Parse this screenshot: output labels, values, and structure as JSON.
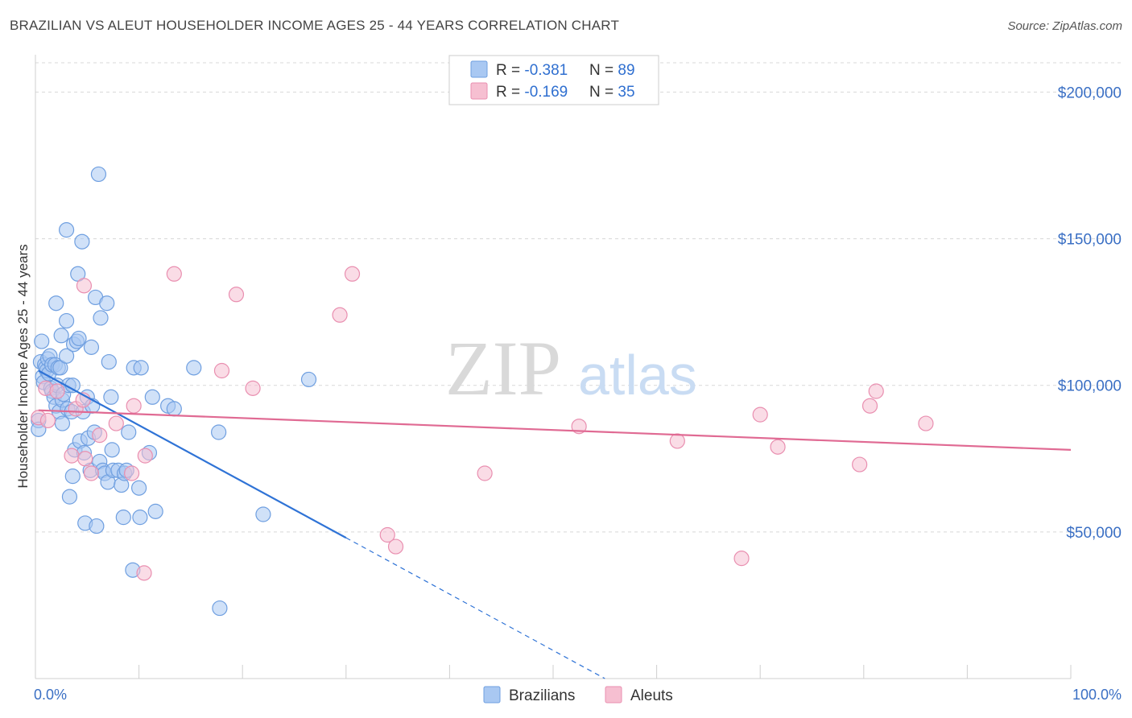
{
  "title": "BRAZILIAN VS ALEUT HOUSEHOLDER INCOME AGES 25 - 44 YEARS CORRELATION CHART",
  "source": "Source: ZipAtlas.com",
  "watermark": {
    "zip": "ZIP",
    "atlas": "atlas"
  },
  "colors": {
    "blue_fill": "#a9c8f2",
    "blue_stroke": "#6f9fe0",
    "blue_line": "#2f73d6",
    "pink_fill": "#f6bfd1",
    "pink_stroke": "#e98fb0",
    "pink_line": "#e06a93",
    "grid": "#d8d8d8",
    "tick_text": "#3a6fc4"
  },
  "legend": {
    "rows": [
      {
        "r_label": "R = ",
        "r_value": "-0.381",
        "n_label": "N = ",
        "n_value": "89"
      },
      {
        "r_label": "R = ",
        "r_value": "-0.169",
        "n_label": "N = ",
        "n_value": "35"
      }
    ]
  },
  "chart_data": {
    "type": "scatter",
    "xlabel": "",
    "ylabel": "Householder Income Ages 25 - 44 years",
    "xlim": [
      0,
      100
    ],
    "ylim": [
      0,
      210000
    ],
    "x_tick_labels": [
      "0.0%",
      "100.0%"
    ],
    "y_ticks": [
      {
        "value": 200000,
        "label": "$200,000"
      },
      {
        "value": 150000,
        "label": "$150,000"
      },
      {
        "value": 100000,
        "label": "$100,000"
      },
      {
        "value": 50000,
        "label": "$50,000"
      }
    ],
    "grid": true,
    "legend_position": "bottom-center",
    "series": [
      {
        "name": "Brazilians",
        "color": "#a9c8f2",
        "trend": {
          "x0": 0.3,
          "y0": 105000,
          "x1": 30,
          "y1": 48000,
          "dash_to_x": 55,
          "dash_to_y": 0
        },
        "points": [
          [
            0.3,
            88000
          ],
          [
            0.3,
            85000
          ],
          [
            0.5,
            108000
          ],
          [
            0.6,
            115000
          ],
          [
            0.7,
            103000
          ],
          [
            0.8,
            101000
          ],
          [
            0.9,
            107000
          ],
          [
            1.0,
            106000
          ],
          [
            1.1,
            105000
          ],
          [
            1.2,
            109000
          ],
          [
            1.3,
            104000
          ],
          [
            1.4,
            110000
          ],
          [
            1.5,
            99000
          ],
          [
            1.6,
            98000
          ],
          [
            1.6,
            107000
          ],
          [
            1.8,
            96000
          ],
          [
            1.9,
            107000
          ],
          [
            2.0,
            128000
          ],
          [
            2.0,
            93000
          ],
          [
            2.1,
            100000
          ],
          [
            2.2,
            106000
          ],
          [
            2.3,
            91000
          ],
          [
            2.4,
            106000
          ],
          [
            2.5,
            117000
          ],
          [
            2.6,
            95000
          ],
          [
            2.6,
            87000
          ],
          [
            2.7,
            97000
          ],
          [
            3.0,
            153000
          ],
          [
            3.0,
            122000
          ],
          [
            3.0,
            110000
          ],
          [
            3.1,
            92000
          ],
          [
            3.2,
            100000
          ],
          [
            3.3,
            62000
          ],
          [
            3.5,
            91000
          ],
          [
            3.6,
            69000
          ],
          [
            3.6,
            100000
          ],
          [
            3.7,
            114000
          ],
          [
            3.8,
            78000
          ],
          [
            4.0,
            115000
          ],
          [
            4.1,
            138000
          ],
          [
            4.2,
            116000
          ],
          [
            4.3,
            81000
          ],
          [
            4.5,
            149000
          ],
          [
            4.6,
            91000
          ],
          [
            4.7,
            77000
          ],
          [
            4.8,
            53000
          ],
          [
            5.0,
            96000
          ],
          [
            5.1,
            82000
          ],
          [
            5.3,
            71000
          ],
          [
            5.4,
            113000
          ],
          [
            5.5,
            93000
          ],
          [
            5.7,
            84000
          ],
          [
            5.8,
            130000
          ],
          [
            5.9,
            52000
          ],
          [
            6.1,
            172000
          ],
          [
            6.2,
            74000
          ],
          [
            6.3,
            123000
          ],
          [
            6.5,
            71000
          ],
          [
            6.7,
            70000
          ],
          [
            6.9,
            128000
          ],
          [
            7.0,
            67000
          ],
          [
            7.1,
            108000
          ],
          [
            7.3,
            96000
          ],
          [
            7.4,
            78000
          ],
          [
            7.5,
            71000
          ],
          [
            8.0,
            71000
          ],
          [
            8.3,
            66000
          ],
          [
            8.5,
            55000
          ],
          [
            8.6,
            70000
          ],
          [
            8.8,
            71000
          ],
          [
            9.0,
            84000
          ],
          [
            9.4,
            37000
          ],
          [
            9.5,
            106000
          ],
          [
            10.0,
            65000
          ],
          [
            10.1,
            55000
          ],
          [
            10.2,
            106000
          ],
          [
            11.0,
            77000
          ],
          [
            11.3,
            96000
          ],
          [
            11.6,
            57000
          ],
          [
            12.8,
            93000
          ],
          [
            13.4,
            92000
          ],
          [
            15.3,
            106000
          ],
          [
            17.7,
            84000
          ],
          [
            17.8,
            24000
          ],
          [
            22.0,
            56000
          ],
          [
            26.4,
            102000
          ]
        ]
      },
      {
        "name": "Aleuts",
        "color": "#f6bfd1",
        "trend": {
          "x0": 0.3,
          "y0": 91500,
          "x1": 100,
          "y1": 78000
        },
        "points": [
          [
            0.3,
            89000
          ],
          [
            1.0,
            99000
          ],
          [
            1.2,
            88000
          ],
          [
            2.1,
            98000
          ],
          [
            3.5,
            76000
          ],
          [
            3.9,
            92000
          ],
          [
            4.6,
            95000
          ],
          [
            4.7,
            134000
          ],
          [
            4.8,
            75000
          ],
          [
            5.4,
            70000
          ],
          [
            6.2,
            83000
          ],
          [
            7.8,
            87000
          ],
          [
            9.3,
            70000
          ],
          [
            9.5,
            93000
          ],
          [
            10.5,
            36000
          ],
          [
            10.6,
            76000
          ],
          [
            13.4,
            138000
          ],
          [
            18.0,
            105000
          ],
          [
            19.4,
            131000
          ],
          [
            21.0,
            99000
          ],
          [
            29.4,
            124000
          ],
          [
            30.6,
            138000
          ],
          [
            34.0,
            49000
          ],
          [
            34.8,
            45000
          ],
          [
            43.4,
            70000
          ],
          [
            52.5,
            86000
          ],
          [
            62.0,
            81000
          ],
          [
            68.2,
            41000
          ],
          [
            70.0,
            90000
          ],
          [
            71.7,
            79000
          ],
          [
            79.6,
            73000
          ],
          [
            80.6,
            93000
          ],
          [
            81.2,
            98000
          ],
          [
            86.0,
            87000
          ]
        ]
      }
    ]
  }
}
